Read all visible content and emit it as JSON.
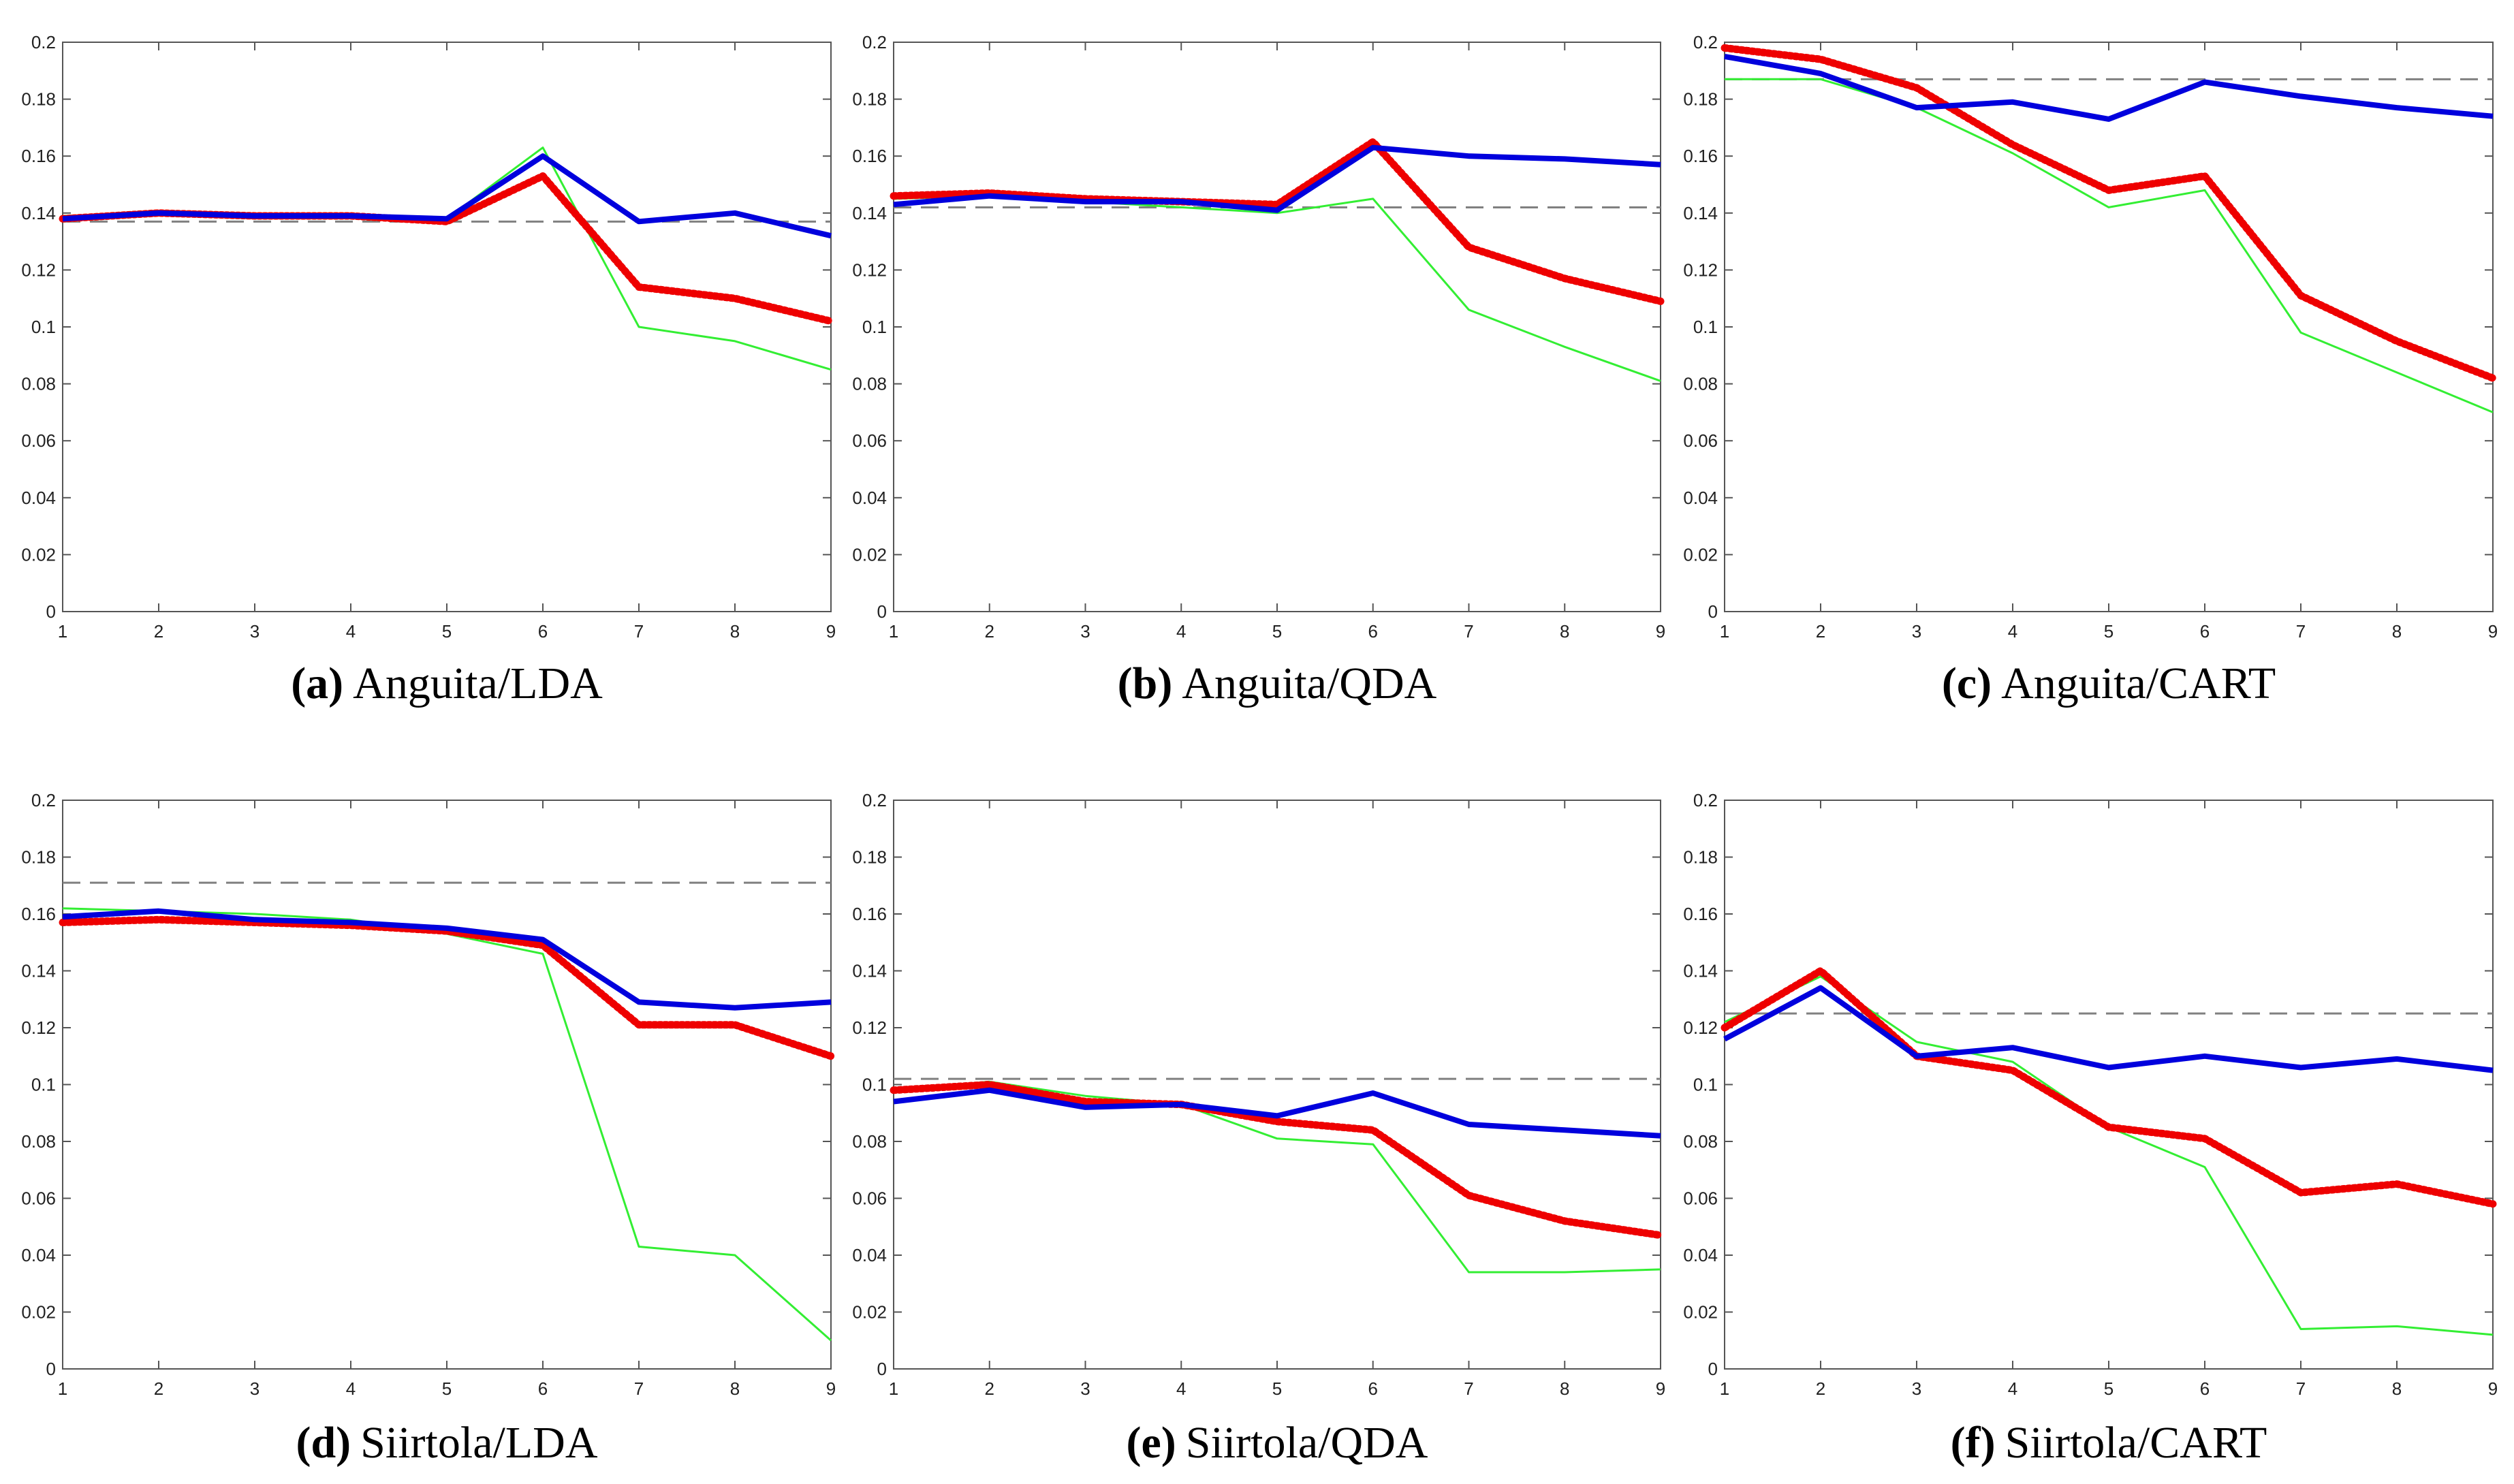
{
  "figure": {
    "colors": {
      "background": "#ffffff",
      "axis": "#555555",
      "tick_text": "#222222",
      "baseline": "#808080",
      "blue": "#0000dd",
      "red": "#ee0000",
      "green": "#33ee33"
    }
  },
  "chart_data": [
    {
      "id": "a",
      "type": "line",
      "caption_letter": "(a)",
      "caption_label": "Anguita/LDA",
      "x": [
        1,
        2,
        3,
        4,
        5,
        6,
        7,
        8,
        9
      ],
      "xticks": [
        "1",
        "2",
        "3",
        "4",
        "5",
        "6",
        "7",
        "8",
        "9"
      ],
      "yticks": [
        "0",
        "0.02",
        "0.04",
        "0.06",
        "0.08",
        "0.1",
        "0.12",
        "0.14",
        "0.16",
        "0.18",
        "0.2"
      ],
      "xlim": [
        1,
        9
      ],
      "ylim": [
        0,
        0.2
      ],
      "baseline": 0.137,
      "series": [
        {
          "name": "green-thin",
          "style": "green",
          "values": [
            0.139,
            0.14,
            0.139,
            0.139,
            0.138,
            0.163,
            0.1,
            0.095,
            0.085
          ]
        },
        {
          "name": "red-dotted",
          "style": "red",
          "values": [
            0.138,
            0.14,
            0.139,
            0.139,
            0.137,
            0.153,
            0.114,
            0.11,
            0.102
          ]
        },
        {
          "name": "blue-thick",
          "style": "blue",
          "values": [
            0.138,
            0.14,
            0.139,
            0.139,
            0.138,
            0.16,
            0.137,
            0.14,
            0.132
          ]
        }
      ]
    },
    {
      "id": "b",
      "type": "line",
      "caption_letter": "(b)",
      "caption_label": "Anguita/QDA",
      "x": [
        1,
        2,
        3,
        4,
        5,
        6,
        7,
        8,
        9
      ],
      "xticks": [
        "1",
        "2",
        "3",
        "4",
        "5",
        "6",
        "7",
        "8",
        "9"
      ],
      "yticks": [
        "0",
        "0.02",
        "0.04",
        "0.06",
        "0.08",
        "0.1",
        "0.12",
        "0.14",
        "0.16",
        "0.18",
        "0.2"
      ],
      "xlim": [
        1,
        9
      ],
      "ylim": [
        0,
        0.2
      ],
      "baseline": 0.142,
      "series": [
        {
          "name": "green-thin",
          "style": "green",
          "values": [
            0.145,
            0.146,
            0.144,
            0.142,
            0.14,
            0.145,
            0.106,
            0.093,
            0.081
          ]
        },
        {
          "name": "red-dotted",
          "style": "red",
          "values": [
            0.146,
            0.147,
            0.145,
            0.144,
            0.143,
            0.165,
            0.128,
            0.117,
            0.109
          ]
        },
        {
          "name": "blue-thick",
          "style": "blue",
          "values": [
            0.143,
            0.146,
            0.144,
            0.144,
            0.141,
            0.163,
            0.16,
            0.159,
            0.157
          ]
        }
      ]
    },
    {
      "id": "c",
      "type": "line",
      "caption_letter": "(c)",
      "caption_label": "Anguita/CART",
      "x": [
        1,
        2,
        3,
        4,
        5,
        6,
        7,
        8,
        9
      ],
      "xticks": [
        "1",
        "2",
        "3",
        "4",
        "5",
        "6",
        "7",
        "8",
        "9"
      ],
      "yticks": [
        "0",
        "0.02",
        "0.04",
        "0.06",
        "0.08",
        "0.1",
        "0.12",
        "0.14",
        "0.16",
        "0.18",
        "0.2"
      ],
      "xlim": [
        1,
        9
      ],
      "ylim": [
        0,
        0.2
      ],
      "baseline": 0.187,
      "series": [
        {
          "name": "green-thin",
          "style": "green",
          "values": [
            0.187,
            0.187,
            0.177,
            0.161,
            0.142,
            0.148,
            0.098,
            0.084,
            0.07
          ]
        },
        {
          "name": "red-dotted",
          "style": "red",
          "values": [
            0.198,
            0.194,
            0.184,
            0.164,
            0.148,
            0.153,
            0.111,
            0.095,
            0.082
          ]
        },
        {
          "name": "blue-thick",
          "style": "blue",
          "values": [
            0.195,
            0.189,
            0.177,
            0.179,
            0.173,
            0.186,
            0.181,
            0.177,
            0.174
          ]
        }
      ]
    },
    {
      "id": "d",
      "type": "line",
      "caption_letter": "(d)",
      "caption_label": "Siirtola/LDA",
      "x": [
        1,
        2,
        3,
        4,
        5,
        6,
        7,
        8,
        9
      ],
      "xticks": [
        "1",
        "2",
        "3",
        "4",
        "5",
        "6",
        "7",
        "8",
        "9"
      ],
      "yticks": [
        "0",
        "0.02",
        "0.04",
        "0.06",
        "0.08",
        "0.1",
        "0.12",
        "0.14",
        "0.16",
        "0.18",
        "0.2"
      ],
      "xlim": [
        1,
        9
      ],
      "ylim": [
        0,
        0.2
      ],
      "baseline": 0.171,
      "series": [
        {
          "name": "green-thin",
          "style": "green",
          "values": [
            0.162,
            0.161,
            0.16,
            0.158,
            0.153,
            0.146,
            0.043,
            0.04,
            0.01
          ]
        },
        {
          "name": "red-dotted",
          "style": "red",
          "values": [
            0.157,
            0.158,
            0.157,
            0.156,
            0.154,
            0.149,
            0.121,
            0.121,
            0.11
          ]
        },
        {
          "name": "blue-thick",
          "style": "blue",
          "values": [
            0.159,
            0.161,
            0.158,
            0.157,
            0.155,
            0.151,
            0.129,
            0.127,
            0.129
          ]
        }
      ]
    },
    {
      "id": "e",
      "type": "line",
      "caption_letter": "(e)",
      "caption_label": "Siirtola/QDA",
      "x": [
        1,
        2,
        3,
        4,
        5,
        6,
        7,
        8,
        9
      ],
      "xticks": [
        "1",
        "2",
        "3",
        "4",
        "5",
        "6",
        "7",
        "8",
        "9"
      ],
      "yticks": [
        "0",
        "0.02",
        "0.04",
        "0.06",
        "0.08",
        "0.1",
        "0.12",
        "0.14",
        "0.16",
        "0.18",
        "0.2"
      ],
      "xlim": [
        1,
        9
      ],
      "ylim": [
        0,
        0.2
      ],
      "baseline": 0.102,
      "series": [
        {
          "name": "green-thin",
          "style": "green",
          "values": [
            0.098,
            0.101,
            0.096,
            0.093,
            0.081,
            0.079,
            0.034,
            0.034,
            0.035
          ]
        },
        {
          "name": "red-dotted",
          "style": "red",
          "values": [
            0.098,
            0.1,
            0.094,
            0.093,
            0.087,
            0.084,
            0.061,
            0.052,
            0.047
          ]
        },
        {
          "name": "blue-thick",
          "style": "blue",
          "values": [
            0.094,
            0.098,
            0.092,
            0.093,
            0.089,
            0.097,
            0.086,
            0.084,
            0.082
          ]
        }
      ]
    },
    {
      "id": "f",
      "type": "line",
      "caption_letter": "(f)",
      "caption_label": "Siirtola/CART",
      "x": [
        1,
        2,
        3,
        4,
        5,
        6,
        7,
        8,
        9
      ],
      "xticks": [
        "1",
        "2",
        "3",
        "4",
        "5",
        "6",
        "7",
        "8",
        "9"
      ],
      "yticks": [
        "0",
        "0.02",
        "0.04",
        "0.06",
        "0.08",
        "0.1",
        "0.12",
        "0.14",
        "0.16",
        "0.18",
        "0.2"
      ],
      "xlim": [
        1,
        9
      ],
      "ylim": [
        0,
        0.2
      ],
      "baseline": 0.125,
      "series": [
        {
          "name": "green-thin",
          "style": "green",
          "values": [
            0.122,
            0.138,
            0.115,
            0.108,
            0.085,
            0.071,
            0.014,
            0.015,
            0.012
          ]
        },
        {
          "name": "red-dotted",
          "style": "red",
          "values": [
            0.12,
            0.14,
            0.11,
            0.105,
            0.085,
            0.081,
            0.062,
            0.065,
            0.058
          ]
        },
        {
          "name": "blue-thick",
          "style": "blue",
          "values": [
            0.116,
            0.134,
            0.11,
            0.113,
            0.106,
            0.11,
            0.106,
            0.109,
            0.105
          ]
        }
      ]
    }
  ]
}
